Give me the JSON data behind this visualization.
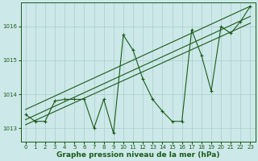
{
  "xlabel": "Graphe pression niveau de la mer (hPa)",
  "ylabel": "",
  "bg_color": "#cce8e8",
  "grid_color": "#aacccc",
  "line_color": "#1a5c1a",
  "marker": "+",
  "markersize": 3.5,
  "linewidth": 0.8,
  "xlim": [
    -0.5,
    23.5
  ],
  "ylim": [
    1012.6,
    1016.7
  ],
  "yticks": [
    1013,
    1014,
    1015,
    1016
  ],
  "xticks": [
    0,
    1,
    2,
    3,
    4,
    5,
    6,
    7,
    8,
    9,
    10,
    11,
    12,
    13,
    14,
    15,
    16,
    17,
    18,
    19,
    20,
    21,
    22,
    23
  ],
  "hours": [
    0,
    1,
    2,
    3,
    4,
    5,
    6,
    7,
    8,
    9,
    10,
    11,
    12,
    13,
    14,
    15,
    16,
    17,
    18,
    19,
    20,
    21,
    22,
    23
  ],
  "pressure": [
    1013.4,
    1013.2,
    1013.2,
    1013.8,
    1013.85,
    1013.85,
    1013.85,
    1013.0,
    1013.85,
    1012.85,
    1015.75,
    1015.3,
    1014.45,
    1013.85,
    1013.5,
    1013.2,
    1013.2,
    1015.9,
    1015.15,
    1014.1,
    1016.0,
    1015.8,
    1016.15,
    1016.6
  ],
  "trend1_x": [
    0,
    23
  ],
  "trend1_y": [
    1013.55,
    1016.6
  ],
  "trend2_x": [
    0,
    23
  ],
  "trend2_y": [
    1013.25,
    1016.3
  ],
  "trend3_x": [
    0,
    23
  ],
  "trend3_y": [
    1013.1,
    1016.1
  ],
  "tick_fontsize": 5,
  "xlabel_fontsize": 6.5
}
